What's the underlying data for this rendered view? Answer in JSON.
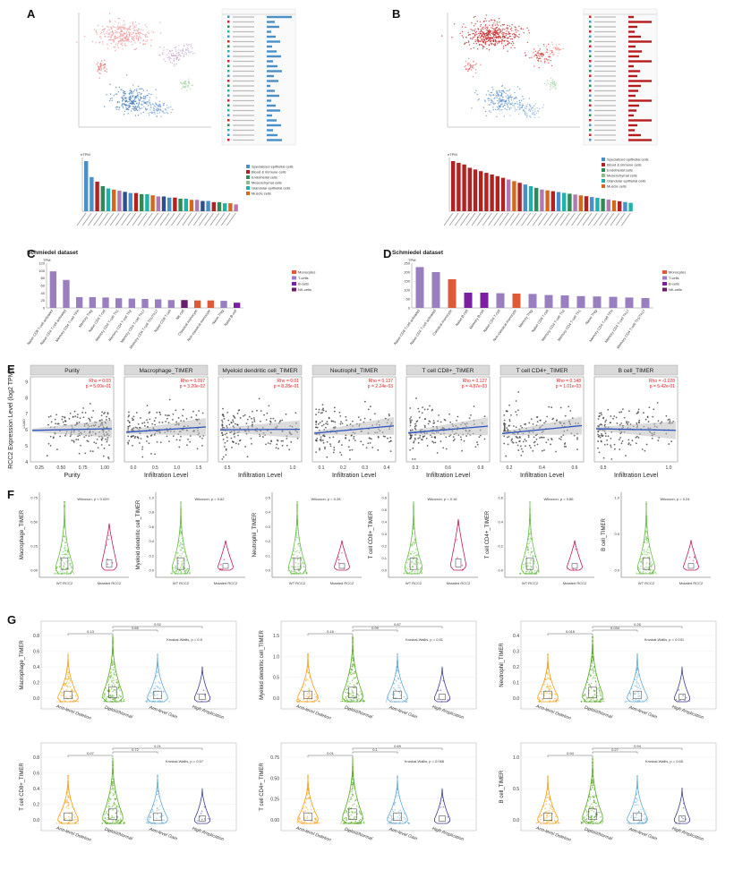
{
  "panels": {
    "A": "A",
    "B": "B",
    "C": "C",
    "D": "D",
    "E": "E",
    "F": "F",
    "G": "G"
  },
  "colors": {
    "specialized_epithelial": "#4a90c8",
    "blood_immune": "#b22222",
    "endothelial": "#2e8b57",
    "mesenchymal": "#8fbc8f",
    "glandular_epithelial": "#20b2aa",
    "muscle": "#d2691e",
    "monocytes": "#e05a3a",
    "t_cells": "#9a7fc0",
    "b_cells": "#7b1fa2",
    "nk_cells": "#6a1b6a",
    "other_bars": "#2f4f8f",
    "regression": "#2a52be",
    "violin_wt": "#66bb44",
    "violin_mut": "#c2185b",
    "cn_deletion": "#f39c12",
    "cn_diploid": "#55aa22",
    "cn_gain": "#5fa8d3",
    "cn_amp": "#3b3b9a"
  },
  "panel_ab": {
    "legend_items": [
      "Specialized epithelial cells",
      "Blood & immune cells",
      "Endothelial cells",
      "Mesenchymal cells",
      "Glandular epithelial cells",
      "Muscle cells"
    ],
    "y_unit": "nTPM"
  },
  "panel_cd": {
    "dataset_label": "Schmiedel dataset",
    "y_unit": "TPM",
    "legend_items": [
      "Monocytes",
      "T-cells",
      "B-cells",
      "NK-cells"
    ]
  },
  "chart_data": [
    {
      "id": "C",
      "type": "bar",
      "title": "Schmiedel dataset",
      "ylabel": "TPM",
      "ylim": [
        0,
        120
      ],
      "categories": [
        "Naive CD8 T-cell activated",
        "Naive CD4 T-cell activated",
        "Memory CD4 T-cell TFH",
        "Memory Treg",
        "Naive CD4 T-cell",
        "Memory CD4 T-cell Th1",
        "Memory CD4 T-cell Th2",
        "Memory CD4 T-cell Th17",
        "Memory CD4 T-cell Th1/Th17",
        "Naive CD8 T-cell",
        "NK-cell",
        "Classical monocyte",
        "Non-classical monocyte",
        "Naive Treg",
        "Naive B-cell"
      ],
      "values": [
        98,
        75,
        29,
        29,
        28,
        26,
        25,
        24,
        23,
        21,
        21,
        20,
        20,
        19,
        14
      ],
      "groups": [
        "t",
        "t",
        "t",
        "t",
        "t",
        "t",
        "t",
        "t",
        "t",
        "t",
        "nk",
        "mono",
        "mono",
        "t",
        "b"
      ]
    },
    {
      "id": "D",
      "type": "bar",
      "title": "Schmiedel dataset",
      "ylabel": "TPM",
      "ylim": [
        0,
        250
      ],
      "categories": [
        "Naive CD8 T-cell activated",
        "Naive CD4 T-cell activated",
        "Classical monocyte",
        "Naive B-cell",
        "Memory B-cell",
        "Naive CD4 T-cell",
        "Non-classical monocyte",
        "Memory Treg",
        "Naive CD8 T-cell",
        "Memory CD4 T-cell Th2",
        "Memory CD4 T-cell Th1",
        "Naive Treg",
        "Memory CD4 T-cell TFH",
        "Memory CD4 T-cell Th17",
        "Memory CD4 T-cell Th1/Th17"
      ],
      "values": [
        228,
        200,
        160,
        85,
        85,
        82,
        80,
        78,
        72,
        70,
        66,
        64,
        62,
        58,
        55
      ],
      "groups": [
        "t",
        "t",
        "mono",
        "b",
        "b",
        "t",
        "mono",
        "t",
        "t",
        "t",
        "t",
        "t",
        "t",
        "t",
        "t"
      ]
    },
    {
      "id": "E",
      "type": "scatter",
      "ylabel": "RCC2 Expression Level (log2 TPM)",
      "xlabel": "Infiltration Level",
      "row_label": "LUAD",
      "facets": [
        {
          "name": "Purity",
          "rho": "Rho = 0.03",
          "p": "p = 5.00e-01",
          "xlabel": "Purity",
          "xticks": [
            "0.25",
            "0.50",
            "0.75",
            "1.00"
          ]
        },
        {
          "name": "Macrophage_TIMER",
          "rho": "Rho = 0.097",
          "p": "p = 3.20e-02",
          "xlabel": "Infiltration Level",
          "xticks": [
            "0.0",
            "0.5",
            "1.0",
            "1.5"
          ]
        },
        {
          "name": "Myeloid dendritic cell_TIMER",
          "rho": "Rho = 0.01",
          "p": "p = 8.28e-01",
          "xlabel": "Infiltration Level",
          "xticks": [
            "0.5",
            "1.0"
          ]
        },
        {
          "name": "Neutrophil_TIMER",
          "rho": "Rho = 0.137",
          "p": "p = 2.24e-03",
          "xlabel": "Infiltration Level",
          "xticks": [
            "0.1",
            "0.2",
            "0.3",
            "0.4"
          ]
        },
        {
          "name": "T cell CD8+_TIMER",
          "rho": "Rho = 0.127",
          "p": "p = 4.87e-03",
          "xlabel": "Infiltration Level",
          "xticks": [
            "0.3",
            "0.6",
            "0.9"
          ]
        },
        {
          "name": "T cell CD4+_TIMER",
          "rho": "Rho = 0.148",
          "p": "p = 1.01e-03",
          "xlabel": "Infiltration Level",
          "xticks": [
            "0.2",
            "0.4",
            "0.6"
          ]
        },
        {
          "name": "B cell_TIMER",
          "rho": "Rho = -0.028",
          "p": "p = 5.42e-01",
          "xlabel": "Infiltration Level",
          "xticks": [
            "0.5",
            "1.0"
          ]
        }
      ],
      "yticks": [
        "4",
        "5",
        "6",
        "7",
        "8",
        "9"
      ],
      "ylim": [
        4,
        9.3
      ]
    },
    {
      "id": "F",
      "type": "violin",
      "categories": [
        "WT RCC2",
        "Mutated RCC2"
      ],
      "plots": [
        {
          "ylabel": "Macrophage_TIMER",
          "stat": "Wilcoxon, p = 0.029",
          "yticks": [
            "0.00",
            "0.25",
            "0.50",
            "0.75"
          ]
        },
        {
          "ylabel": "Myeloid dendritic cell_TIMER",
          "stat": "Wilcoxon, p = 0.62",
          "yticks": [
            "0.0",
            "0.2",
            "0.4",
            "0.6",
            "0.8",
            "1.0"
          ]
        },
        {
          "ylabel": "Neutrophil_TIMER",
          "stat": "Wilcoxon, p = 0.28",
          "yticks": [
            "0.0",
            "0.1",
            "0.2",
            "0.3",
            "0.4",
            "0.5"
          ]
        },
        {
          "ylabel": "T cell CD8+_TIMER",
          "stat": "Wilcoxon, p = 0.16",
          "yticks": [
            "0.0",
            "0.1",
            "0.2",
            "0.3",
            "0.4",
            "0.5",
            "0.6"
          ]
        },
        {
          "ylabel": "T cell CD4+_TIMER",
          "stat": "Wilcoxon, p = 0.85",
          "yticks": [
            "0.0",
            "0.2",
            "0.4",
            "0.6"
          ]
        },
        {
          "ylabel": "B cell_TIMER",
          "stat": "Wilcoxon, p = 0.24",
          "yticks": [
            "0.0",
            "0.5",
            "1.0"
          ]
        }
      ]
    },
    {
      "id": "G",
      "type": "violin",
      "categories": [
        "Arm-level Deletion",
        "Diploid/Normal",
        "Arm-level Gain",
        "High Amplication"
      ],
      "plots": [
        {
          "ylabel": "Macrophage_TIMER",
          "stat": "Kruskal-Wallis, p = 0.5",
          "pvals": [
            "0.13",
            "0.65",
            "0.92"
          ],
          "yticks": [
            "0.0",
            "0.2",
            "0.4",
            "0.6",
            "0.8"
          ]
        },
        {
          "ylabel": "Myeloid dendritic cell_TIMER",
          "stat": "Kruskal-Wallis, p = 0.51",
          "pvals": [
            "0.16",
            "0.99",
            "0.87"
          ],
          "yticks": [
            "0.0",
            "0.5",
            "1.0",
            "1.5"
          ]
        },
        {
          "ylabel": "Neutrophil_TIMER",
          "stat": "Kruskal-Wallis, p = 0.031",
          "pvals": [
            "0.015",
            "0.034",
            "0.26"
          ],
          "yticks": [
            "0.0",
            "0.1",
            "0.2",
            "0.3",
            "0.4"
          ]
        },
        {
          "ylabel": "T cell CD8+_TIMER",
          "stat": "Kruskal-Wallis, p = 0.57",
          "pvals": [
            "0.07",
            "0.72",
            "0.21"
          ],
          "yticks": [
            "0.0",
            "0.2",
            "0.4",
            "0.6",
            "0.8"
          ]
        },
        {
          "ylabel": "T cell CD4+_TIMER",
          "stat": "Kruskal-Wallis, p = 0.066",
          "pvals": [
            "0.01",
            "0.1",
            "0.69"
          ],
          "yticks": [
            "0.00",
            "0.25",
            "0.50",
            "0.75"
          ]
        },
        {
          "ylabel": "B cell_TIMER",
          "stat": "Kruskal-Wallis, p = 0.65",
          "pvals": [
            "0.94",
            "0.27",
            "0.94"
          ],
          "yticks": [
            "0.0",
            "0.5",
            "1.0"
          ]
        }
      ]
    }
  ]
}
